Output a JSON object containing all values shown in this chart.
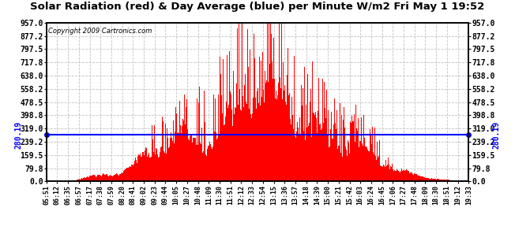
{
  "title": "Solar Radiation (red) & Day Average (blue) per Minute W/m2 Fri May 1 19:52",
  "copyright": "Copyright 2009 Cartronics.com",
  "y_max": 957.0,
  "y_min": 0.0,
  "y_ticks": [
    0.0,
    79.8,
    159.5,
    239.2,
    319.0,
    398.8,
    478.5,
    558.2,
    638.0,
    717.8,
    797.5,
    877.2,
    957.0
  ],
  "day_average": 280.19,
  "bar_color": "#FF0000",
  "average_color": "#0000FF",
  "background_color": "#FFFFFF",
  "grid_color": "#BBBBBB",
  "x_tick_labels": [
    "05:51",
    "06:12",
    "06:35",
    "06:57",
    "07:17",
    "07:38",
    "07:59",
    "08:20",
    "08:41",
    "09:02",
    "09:23",
    "09:44",
    "10:05",
    "10:27",
    "10:48",
    "11:09",
    "11:30",
    "11:51",
    "12:12",
    "12:33",
    "12:54",
    "13:15",
    "13:36",
    "13:57",
    "14:18",
    "14:39",
    "15:00",
    "15:21",
    "15:42",
    "16:03",
    "16:24",
    "16:45",
    "17:06",
    "17:27",
    "17:48",
    "18:09",
    "18:30",
    "18:51",
    "19:12",
    "19:33"
  ],
  "num_minutes": 840,
  "seed": 42
}
